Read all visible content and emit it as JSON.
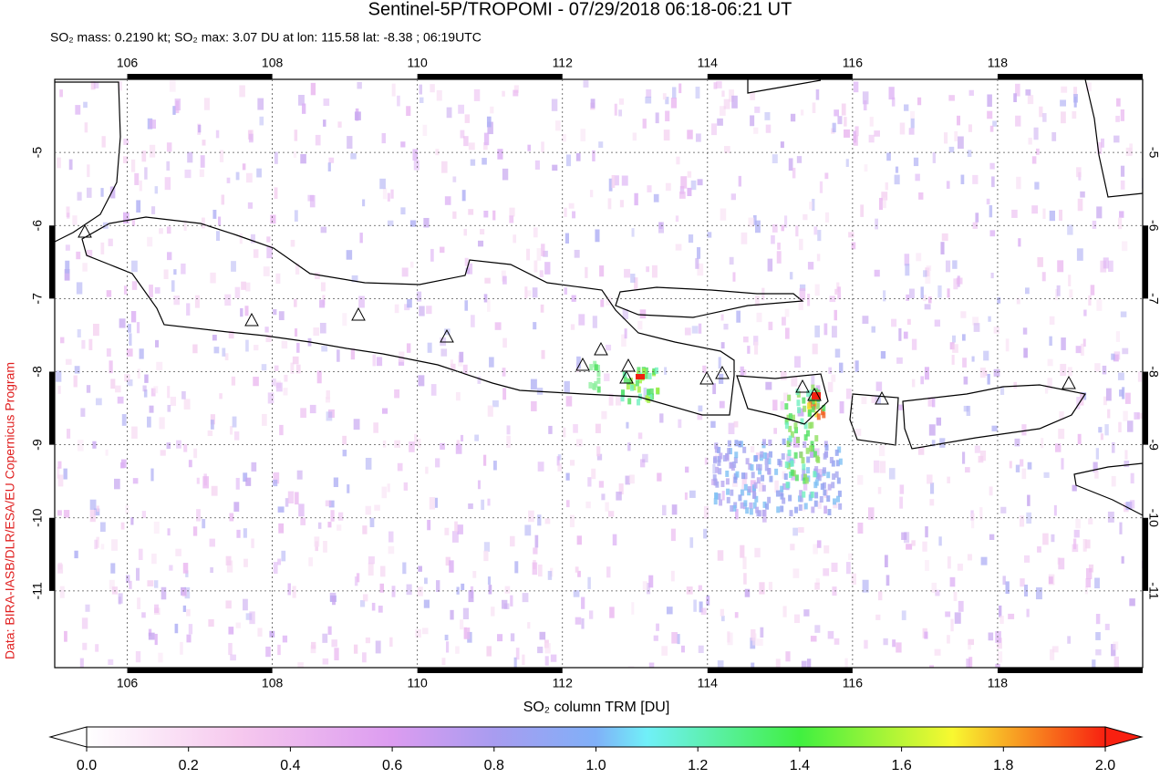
{
  "title": "Sentinel-5P/TROPOMI - 07/29/2018 06:18-06:21 UT",
  "subtitle": "SO₂ mass: 0.2190 kt; SO₂ max: 3.07 DU at lon: 115.58 lat: -8.38 ; 06:19UTC",
  "credit": "Data: BIRA-IASB/DLR/ESA/EU Copernicus Program",
  "map": {
    "lon_range": [
      105,
      120
    ],
    "lat_range": [
      -4,
      -12.05
    ],
    "lon_ticks": [
      106,
      108,
      110,
      112,
      114,
      116,
      118
    ],
    "lat_ticks": [
      -5,
      -6,
      -7,
      -8,
      -9,
      -10,
      -11
    ]
  },
  "colorbar": {
    "label": "SO₂ column TRM [DU]",
    "range": [
      0,
      2
    ],
    "ticks": [
      {
        "value": 0,
        "label": "0.0"
      },
      {
        "value": 0.2,
        "label": "0.2"
      },
      {
        "value": 0.4,
        "label": "0.4"
      },
      {
        "value": 0.6,
        "label": "0.6"
      },
      {
        "value": 0.8,
        "label": "0.8"
      },
      {
        "value": 1,
        "label": "1.0"
      },
      {
        "value": 1.2,
        "label": "1.2"
      },
      {
        "value": 1.4,
        "label": "1.4"
      },
      {
        "value": 1.6,
        "label": "1.6"
      },
      {
        "value": 1.8,
        "label": "1.8"
      },
      {
        "value": 2,
        "label": "2.0"
      }
    ]
  }
}
